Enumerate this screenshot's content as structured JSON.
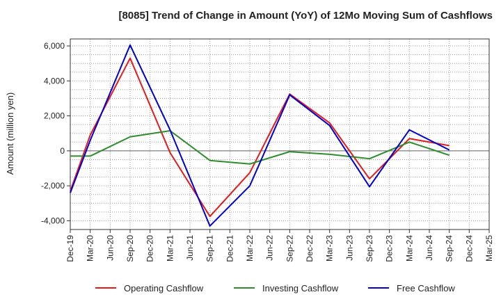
{
  "chart_data": {
    "type": "line",
    "title": "[8085]  Trend of Change in Amount (YoY) of 12Mo Moving Sum of Cashflows",
    "xlabel": "",
    "ylabel": "Amount (million yen)",
    "ylim": [
      -4500,
      6400
    ],
    "yticks": [
      -4000,
      -2000,
      0,
      2000,
      4000,
      6000
    ],
    "ytick_labels": [
      "-4,000",
      "-2,000",
      "0",
      "2,000",
      "4,000",
      "6,000"
    ],
    "categories": [
      "Dec-19",
      "Mar-20",
      "Jun-20",
      "Sep-20",
      "Dec-20",
      "Mar-21",
      "Jun-21",
      "Sep-21",
      "Dec-21",
      "Mar-22",
      "Jun-22",
      "Sep-22",
      "Dec-22",
      "Mar-23",
      "Jun-23",
      "Sep-23",
      "Dec-23",
      "Mar-24",
      "Jun-24",
      "Sep-24",
      "Dec-24",
      "Mar-25"
    ],
    "grid": true,
    "legend_position": "bottom",
    "series": [
      {
        "name": "Operating Cashflow",
        "color": "#e31a1c",
        "values": [
          -2300,
          900,
          null,
          5300,
          null,
          -100,
          null,
          -3750,
          null,
          -1250,
          null,
          3250,
          null,
          1600,
          null,
          -1600,
          null,
          700,
          null,
          300,
          null,
          null
        ]
      },
      {
        "name": "Investing Cashflow",
        "color": "#2e8b2e",
        "values": [
          -300,
          -300,
          null,
          800,
          null,
          1150,
          null,
          -550,
          null,
          -750,
          null,
          -50,
          null,
          -200,
          null,
          -450,
          null,
          500,
          null,
          -250,
          null,
          null
        ]
      },
      {
        "name": "Free Cashflow",
        "color": "#0000cc",
        "values": [
          -2400,
          600,
          null,
          6050,
          null,
          1200,
          null,
          -4300,
          null,
          -2000,
          null,
          3200,
          null,
          1450,
          null,
          -2050,
          null,
          1200,
          null,
          50,
          null,
          null
        ]
      }
    ]
  }
}
